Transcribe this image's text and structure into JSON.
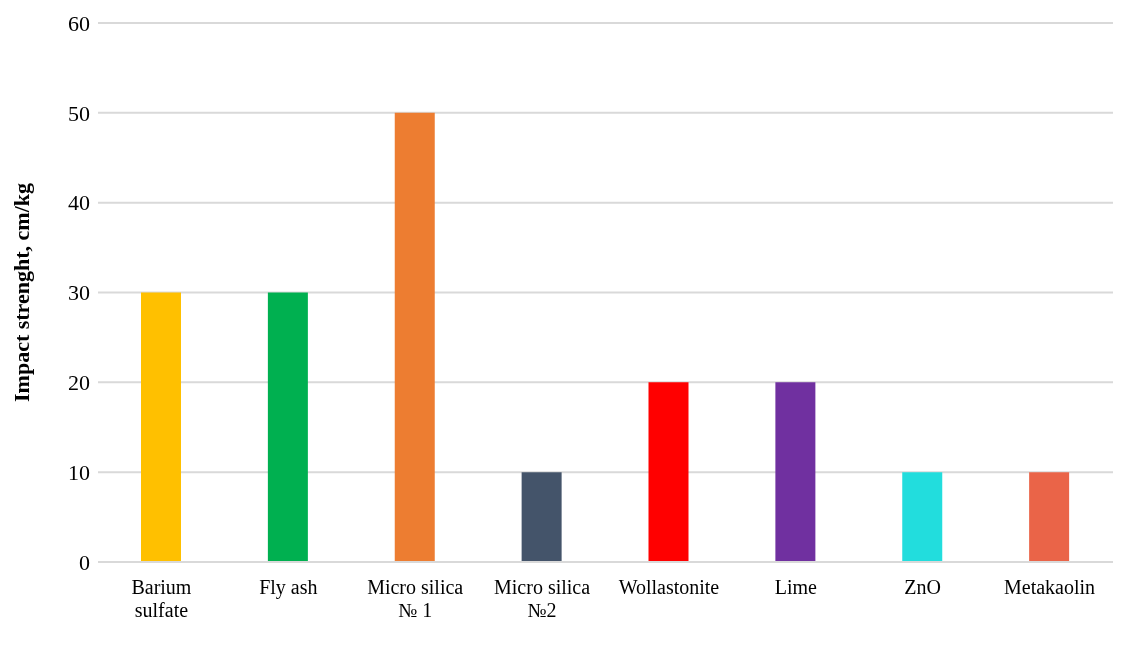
{
  "chart_data": {
    "type": "bar",
    "ylabel": "Impact strenght, cm/kg",
    "categories": [
      "Barium sulfate",
      "Fly ash",
      "Micro silica № 1",
      "Micro silica №2",
      "Wollastonite",
      "Lime",
      "ZnO",
      "Metakaolin"
    ],
    "values": [
      30,
      30,
      50,
      10,
      20,
      20,
      10,
      10
    ],
    "colors": [
      "#ffc000",
      "#00b050",
      "#ed7d31",
      "#44546a",
      "#ff0000",
      "#7030a0",
      "#22dddd",
      "#ea6448"
    ],
    "ylim": [
      0,
      60
    ],
    "yticks": [
      0,
      10,
      20,
      30,
      40,
      50,
      60
    ],
    "grid": "y",
    "legend": false
  }
}
